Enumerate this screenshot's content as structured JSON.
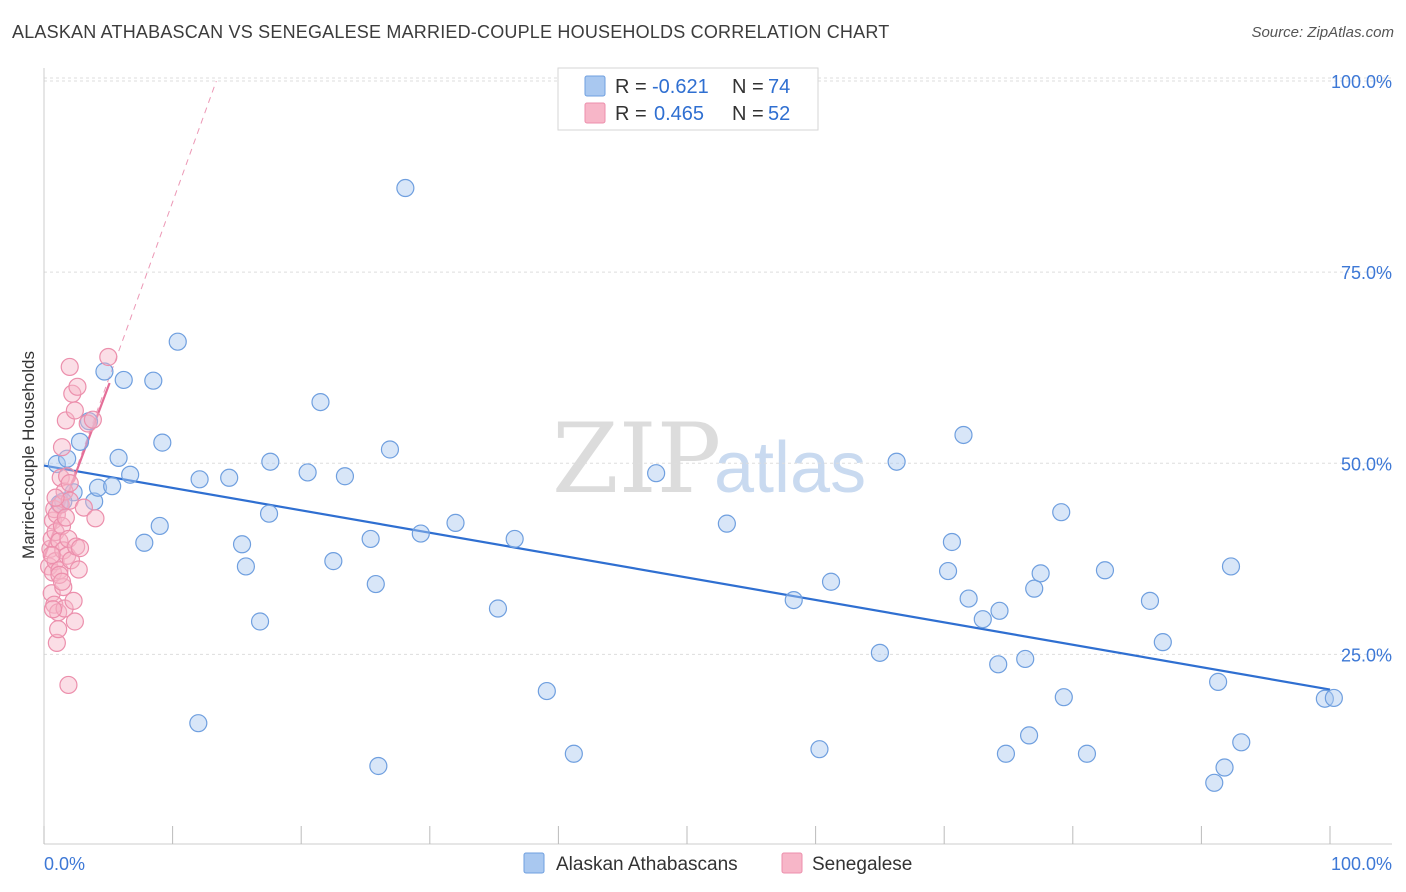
{
  "header": {
    "title": "ALASKAN ATHABASCAN VS SENEGALESE MARRIED-COUPLE HOUSEHOLDS CORRELATION CHART",
    "source": "Source: ZipAtlas.com"
  },
  "watermark": {
    "zip": "ZIP",
    "atlas": "atlas"
  },
  "legend": {
    "rows": [
      {
        "r_label": "R =",
        "r_value": "-0.621",
        "n_label": "N =",
        "n_value": "74",
        "color": "#a9c8f0"
      },
      {
        "r_label": "R =",
        "r_value": "0.465",
        "n_label": "N =",
        "n_value": "52",
        "color": "#f7b6c8"
      }
    ]
  },
  "chart_data": {
    "type": "scatter",
    "title": "ALASKAN ATHABASCAN VS SENEGALESE MARRIED-COUPLE HOUSEHOLDS CORRELATION CHART",
    "xlabel": "",
    "ylabel": "Married-couple Households",
    "xlim": [
      0,
      100
    ],
    "ylim": [
      0,
      105
    ],
    "x_tick_labels": [
      "0.0%",
      "100.0%"
    ],
    "y_ticks": [
      25,
      50,
      75,
      100
    ],
    "y_tick_labels": [
      "25.0%",
      "50.0%",
      "75.0%",
      "100.0%"
    ],
    "grid": true,
    "series": [
      {
        "name": "Alaskan Athabascans",
        "color": "#a9c8f0",
        "stroke": "#6f9fdf",
        "trend": {
          "x": [
            0,
            100
          ],
          "y": [
            49.7,
            20.4
          ],
          "color": "#2f6fd1"
        },
        "points": [
          [
            1.0,
            49.9
          ],
          [
            1.2,
            44.7
          ],
          [
            1.8,
            50.6
          ],
          [
            2.3,
            46.2
          ],
          [
            2.8,
            52.8
          ],
          [
            3.5,
            55.5
          ],
          [
            3.9,
            45.0
          ],
          [
            4.2,
            46.8
          ],
          [
            4.7,
            62.0
          ],
          [
            5.3,
            47.0
          ],
          [
            5.8,
            50.7
          ],
          [
            6.2,
            60.9
          ],
          [
            6.7,
            48.5
          ],
          [
            7.8,
            39.6
          ],
          [
            8.5,
            60.8
          ],
          [
            9.0,
            41.8
          ],
          [
            9.2,
            52.7
          ],
          [
            10.4,
            65.9
          ],
          [
            12.0,
            16.0
          ],
          [
            12.1,
            47.9
          ],
          [
            14.4,
            48.1
          ],
          [
            15.4,
            39.4
          ],
          [
            15.7,
            36.5
          ],
          [
            16.8,
            29.3
          ],
          [
            17.5,
            43.4
          ],
          [
            17.6,
            50.2
          ],
          [
            20.5,
            48.8
          ],
          [
            21.5,
            58.0
          ],
          [
            22.5,
            37.2
          ],
          [
            23.4,
            48.3
          ],
          [
            25.4,
            40.1
          ],
          [
            25.8,
            34.2
          ],
          [
            26.0,
            10.4
          ],
          [
            26.9,
            51.8
          ],
          [
            28.1,
            86.0
          ],
          [
            29.3,
            40.8
          ],
          [
            32.0,
            42.2
          ],
          [
            35.3,
            31.0
          ],
          [
            36.6,
            40.1
          ],
          [
            39.1,
            20.2
          ],
          [
            41.2,
            12.0
          ],
          [
            47.6,
            48.7
          ],
          [
            53.1,
            42.1
          ],
          [
            58.3,
            32.1
          ],
          [
            60.3,
            12.6
          ],
          [
            61.2,
            34.5
          ],
          [
            65.0,
            25.2
          ],
          [
            66.3,
            50.2
          ],
          [
            70.3,
            35.9
          ],
          [
            70.6,
            39.7
          ],
          [
            71.5,
            53.7
          ],
          [
            71.9,
            32.3
          ],
          [
            73.0,
            29.6
          ],
          [
            74.2,
            23.7
          ],
          [
            74.3,
            30.7
          ],
          [
            74.8,
            12.0
          ],
          [
            76.3,
            24.4
          ],
          [
            76.6,
            14.4
          ],
          [
            77.0,
            33.6
          ],
          [
            77.5,
            35.6
          ],
          [
            79.1,
            43.6
          ],
          [
            79.3,
            19.4
          ],
          [
            81.1,
            12.0
          ],
          [
            82.5,
            36.0
          ],
          [
            86.0,
            32.0
          ],
          [
            87.0,
            26.6
          ],
          [
            91.0,
            8.2
          ],
          [
            91.8,
            10.2
          ],
          [
            91.3,
            21.4
          ],
          [
            92.3,
            36.5
          ],
          [
            93.1,
            13.5
          ],
          [
            99.6,
            19.2
          ],
          [
            100.3,
            19.3
          ],
          [
            1.5,
            45.0
          ]
        ]
      },
      {
        "name": "Senegalese",
        "color": "#f7b6c8",
        "stroke": "#ec8fac",
        "trend": {
          "x": [
            0,
            5.1
          ],
          "y": [
            37.6,
            60.5
          ],
          "color": "#e46d97"
        },
        "trend_extended": {
          "x": [
            0,
            13.4
          ],
          "y": [
            37.6,
            100.0
          ],
          "color": "#e46d97"
        },
        "points": [
          [
            0.4,
            36.5
          ],
          [
            0.5,
            38.8
          ],
          [
            0.6,
            40.1
          ],
          [
            0.6,
            33.0
          ],
          [
            0.7,
            42.5
          ],
          [
            0.7,
            35.7
          ],
          [
            0.8,
            44.0
          ],
          [
            0.8,
            31.5
          ],
          [
            0.9,
            41.0
          ],
          [
            0.9,
            37.2
          ],
          [
            1.0,
            43.3
          ],
          [
            1.0,
            26.5
          ],
          [
            1.1,
            28.3
          ],
          [
            1.1,
            30.5
          ],
          [
            1.2,
            39.8
          ],
          [
            1.2,
            36.0
          ],
          [
            1.3,
            48.1
          ],
          [
            1.3,
            44.6
          ],
          [
            1.4,
            41.8
          ],
          [
            1.4,
            52.1
          ],
          [
            1.5,
            38.6
          ],
          [
            1.5,
            33.8
          ],
          [
            1.6,
            46.3
          ],
          [
            1.6,
            31.0
          ],
          [
            1.7,
            55.6
          ],
          [
            1.7,
            42.9
          ],
          [
            1.8,
            37.9
          ],
          [
            1.8,
            48.3
          ],
          [
            1.9,
            21.0
          ],
          [
            1.9,
            40.1
          ],
          [
            2.0,
            62.6
          ],
          [
            2.0,
            45.1
          ],
          [
            2.1,
            37.3
          ],
          [
            2.2,
            59.1
          ],
          [
            2.3,
            32.0
          ],
          [
            2.4,
            29.3
          ],
          [
            2.4,
            56.9
          ],
          [
            2.5,
            39.1
          ],
          [
            2.6,
            60.0
          ],
          [
            2.7,
            36.1
          ],
          [
            2.8,
            38.9
          ],
          [
            3.1,
            44.2
          ],
          [
            3.4,
            55.2
          ],
          [
            3.8,
            55.7
          ],
          [
            4.0,
            42.8
          ],
          [
            5.0,
            63.9
          ],
          [
            1.2,
            35.4
          ],
          [
            0.6,
            38.0
          ],
          [
            0.9,
            45.5
          ],
          [
            1.4,
            34.5
          ],
          [
            2.0,
            47.4
          ],
          [
            0.7,
            30.9
          ]
        ]
      }
    ]
  }
}
